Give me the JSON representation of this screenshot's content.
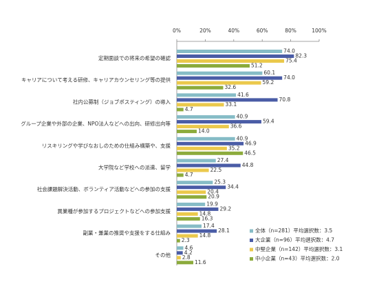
{
  "chart_data": {
    "type": "bar",
    "orientation": "horizontal",
    "categories": [
      "定期面談での将来の希望の確認",
      "キャリアについて考える研修、キャリアカウンセリング等の提供",
      "社内公募制（ジョブポスティング）の導入",
      "グループ企業や外部の企業、NPO法人などへの出向、研修出向等",
      "リスキリングや学びなおしのための仕組み構築や、支援",
      "大学院など学校への派遣、留学",
      "社会課題解決活動、ボランティア活動などへの参加の支援",
      "異業種が参加するプロジェクトなどへの参加支援",
      "副業・兼業の推奨や支援をする仕組み",
      "その他"
    ],
    "series": [
      {
        "name": "全体（n=281）平均選択数：3.5",
        "color": "#86bcc6",
        "values": [
          74.0,
          60.1,
          41.6,
          40.9,
          40.9,
          27.4,
          25.3,
          19.9,
          17.4,
          4.6
        ],
        "value_labels": [
          "74.0",
          "60.1",
          "41.6",
          "40.9",
          "40.9",
          "27.4",
          "25.3",
          "19.9",
          "17.4",
          "4.6"
        ]
      },
      {
        "name": "大企業（n=96）平均選択数：4.7",
        "color": "#4a5ca6",
        "values": [
          82.3,
          74.0,
          70.8,
          59.4,
          46.9,
          44.8,
          34.4,
          29.2,
          28.1,
          4.2
        ],
        "value_labels": [
          "82.3",
          "74.0",
          "70.8",
          "59.4",
          "46.9",
          "44.8",
          "34.4",
          "29.2",
          "28.1",
          "4.2"
        ]
      },
      {
        "name": "中堅企業（n=142）平均選択数：3.1",
        "color": "#ebc94c",
        "values": [
          75.4,
          59.2,
          33.1,
          36.6,
          35.2,
          22.5,
          20.4,
          14.8,
          14.8,
          2.8
        ],
        "value_labels": [
          "75.4",
          "59.2",
          "33.1",
          "36.6",
          "35.2",
          "22.5",
          "20.4",
          "14.8",
          "14.8",
          "2.8"
        ]
      },
      {
        "name": "中小企業（n=43）平均選択数：2.0",
        "color": "#8cab3c",
        "values": [
          51.2,
          32.6,
          4.7,
          14.0,
          46.5,
          4.7,
          20.9,
          16.3,
          2.3,
          11.6
        ],
        "value_labels": [
          "51.2",
          "32.6",
          "4.7",
          "14.0",
          "46.5",
          "4.7",
          "20.9",
          "16.3",
          "2.3",
          "11.6"
        ]
      }
    ],
    "xlim": [
      0,
      100
    ],
    "xticks": [
      {
        "value": 0,
        "label": "0%"
      },
      {
        "value": 20,
        "label": "20%"
      },
      {
        "value": 40,
        "label": "40%"
      },
      {
        "value": 60,
        "label": "60%"
      },
      {
        "value": 80,
        "label": "80%"
      },
      {
        "value": 100,
        "label": "100%"
      }
    ],
    "grid": false,
    "legend": "lower right"
  }
}
